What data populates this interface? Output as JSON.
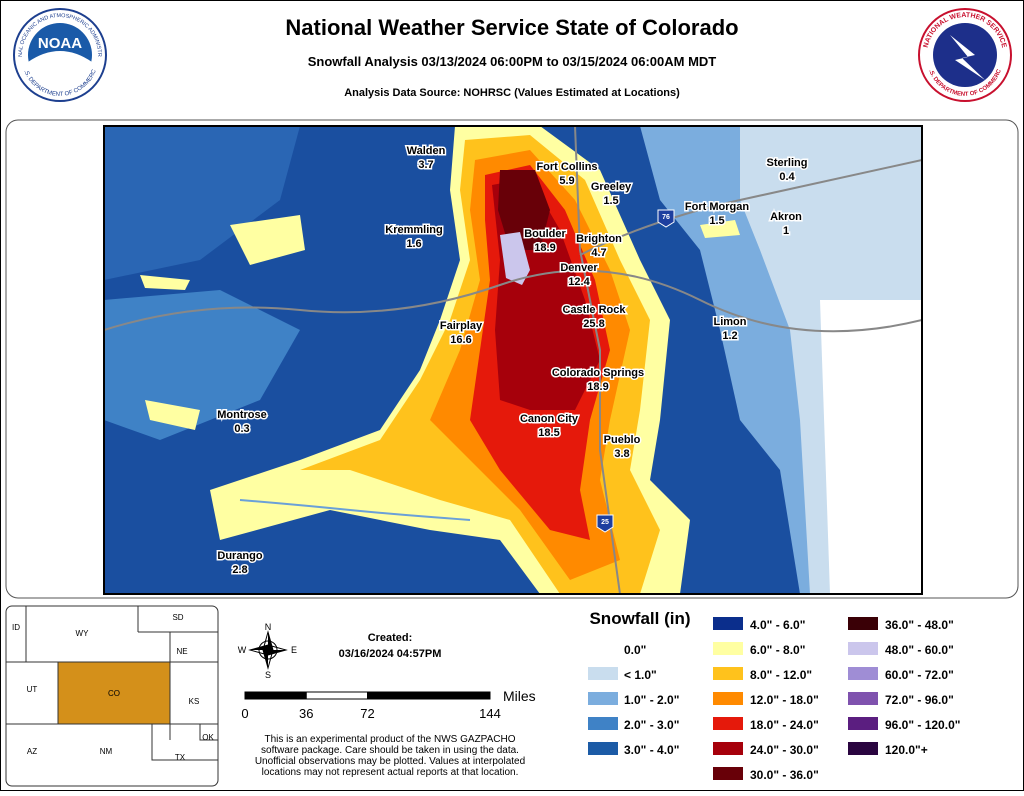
{
  "header": {
    "title": "National Weather Service State of Colorado",
    "subtitle": "Snowfall Analysis 03/13/2024 06:00PM to 03/15/2024 06:00AM MDT",
    "source": "Analysis Data Source: NOHRSC (Values Estimated at Locations)",
    "logo_left": "NOAA",
    "logo_left_ring": "NATIONAL OCEANIC AND ATMOSPHERIC ADMINISTRATION",
    "logo_left_bottom": "U.S. DEPARTMENT OF COMMERCE",
    "logo_right_ring": "NATIONAL WEATHER SERVICE",
    "logo_right_bottom": "U.S. DEPARTMENT OF COMMERCE"
  },
  "map": {
    "cities": [
      {
        "name": "Walden",
        "value": 3.7
      },
      {
        "name": "Fort Collins",
        "value": 5.9
      },
      {
        "name": "Greeley",
        "value": 1.5
      },
      {
        "name": "Sterling",
        "value": 0.4
      },
      {
        "name": "Fort Morgan",
        "value": 1.5
      },
      {
        "name": "Akron",
        "value": 1
      },
      {
        "name": "Kremmling",
        "value": 1.6
      },
      {
        "name": "Boulder",
        "value": 18.9
      },
      {
        "name": "Brighton",
        "value": 4.7
      },
      {
        "name": "Denver",
        "value": 12.4
      },
      {
        "name": "Castle Rock",
        "value": 25.8
      },
      {
        "name": "Limon",
        "value": 1.2
      },
      {
        "name": "Fairplay",
        "value": 16.6
      },
      {
        "name": "Colorado Springs",
        "value": 18.9
      },
      {
        "name": "Montrose",
        "value": 0.3
      },
      {
        "name": "Canon City",
        "value": 18.5
      },
      {
        "name": "Pueblo",
        "value": 3.8
      },
      {
        "name": "Durango",
        "value": 2.8
      }
    ],
    "highways": [
      "76",
      "25"
    ]
  },
  "legend": {
    "title": "Snowfall (in)",
    "items": [
      {
        "label": "0.0\"",
        "color": "#ffffff"
      },
      {
        "label": "< 1.0\"",
        "color": "#c9ddee"
      },
      {
        "label": "1.0\" - 2.0\"",
        "color": "#7badde"
      },
      {
        "label": "2.0\" - 3.0\"",
        "color": "#3f82c6"
      },
      {
        "label": "3.0\" - 4.0\"",
        "color": "#1c5ba6"
      },
      {
        "label": "4.0\" - 6.0\"",
        "color": "#0b2e8c"
      },
      {
        "label": "6.0\" - 8.0\"",
        "color": "#ffffa2"
      },
      {
        "label": "8.0\" - 12.0\"",
        "color": "#ffc21c"
      },
      {
        "label": "12.0\" - 18.0\"",
        "color": "#ff8a00"
      },
      {
        "label": "18.0\" - 24.0\"",
        "color": "#e5190b"
      },
      {
        "label": "24.0\" - 30.0\"",
        "color": "#a6000b"
      },
      {
        "label": "30.0\" - 36.0\"",
        "color": "#680008"
      },
      {
        "label": "36.0\" - 48.0\"",
        "color": "#3a0006"
      },
      {
        "label": "48.0\" - 60.0\"",
        "color": "#cbc6ec"
      },
      {
        "label": "60.0\" - 72.0\"",
        "color": "#9f8dd5"
      },
      {
        "label": "72.0\" - 96.0\"",
        "color": "#7f52ae"
      },
      {
        "label": "96.0\" - 120.0\"",
        "color": "#5b1e80"
      },
      {
        "label": "120.0\"+",
        "color": "#2a0540"
      }
    ]
  },
  "created": {
    "label": "Created:",
    "timestamp": "03/16/2024 04:57PM"
  },
  "compass": {
    "north": "N",
    "east": "E",
    "south": "S",
    "west": "W"
  },
  "scale": {
    "unit": "Miles",
    "ticks": [
      0,
      36,
      72,
      144
    ]
  },
  "disclaimer": [
    "This is an experimental product of the NWS GAZPACHO",
    "software package. Care should be taken in using the data.",
    "Unofficial observations may be plotted. Values at interpolated",
    "locations may not represent actual reports at that location."
  ],
  "inset": {
    "states": [
      "ID",
      "WY",
      "SD",
      "NE",
      "UT",
      "CO",
      "KS",
      "AZ",
      "NM",
      "OK",
      "TX"
    ]
  }
}
